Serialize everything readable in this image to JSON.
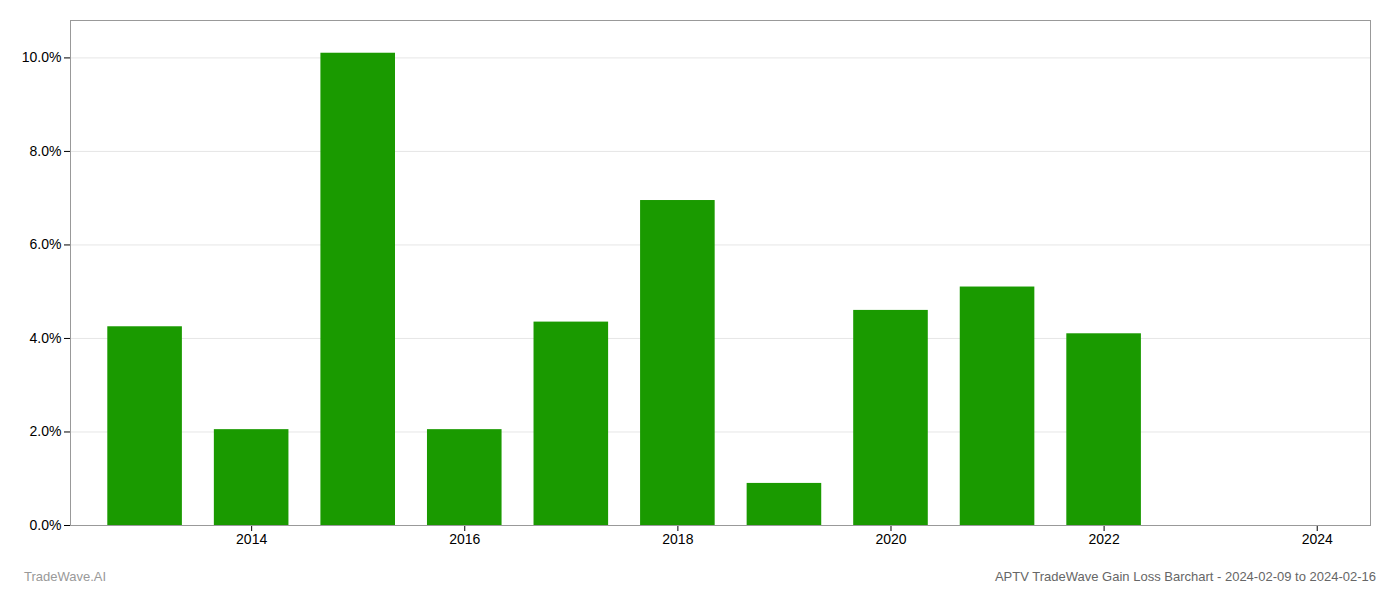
{
  "chart_data": {
    "type": "bar",
    "title": "APTV TradeWave Gain Loss Barchart - 2024-02-09 to 2024-02-16",
    "annotations": [
      {
        "text": "TradeWave.AI"
      }
    ],
    "x": [
      2013,
      2014,
      2015,
      2016,
      2017,
      2018,
      2019,
      2020,
      2021,
      2022,
      2023
    ],
    "values": [
      0.0425,
      0.0205,
      0.101,
      0.0205,
      0.0435,
      0.0695,
      0.009,
      0.046,
      0.051,
      0.041,
      0.0
    ],
    "color": "#1a9a00",
    "xlim": [
      2012.3,
      2024.5
    ],
    "xticks": [
      2014,
      2016,
      2018,
      2020,
      2022,
      2024
    ],
    "ylim": [
      0.0,
      0.108
    ],
    "yticks": [
      {
        "value": 0.0,
        "label": "0.0%"
      },
      {
        "value": 0.02,
        "label": "2.0%"
      },
      {
        "value": 0.04,
        "label": "4.0%"
      },
      {
        "value": 0.06,
        "label": "6.0%"
      },
      {
        "value": 0.08,
        "label": "8.0%"
      },
      {
        "value": 0.1,
        "label": "10.0%"
      }
    ],
    "grid": true
  }
}
